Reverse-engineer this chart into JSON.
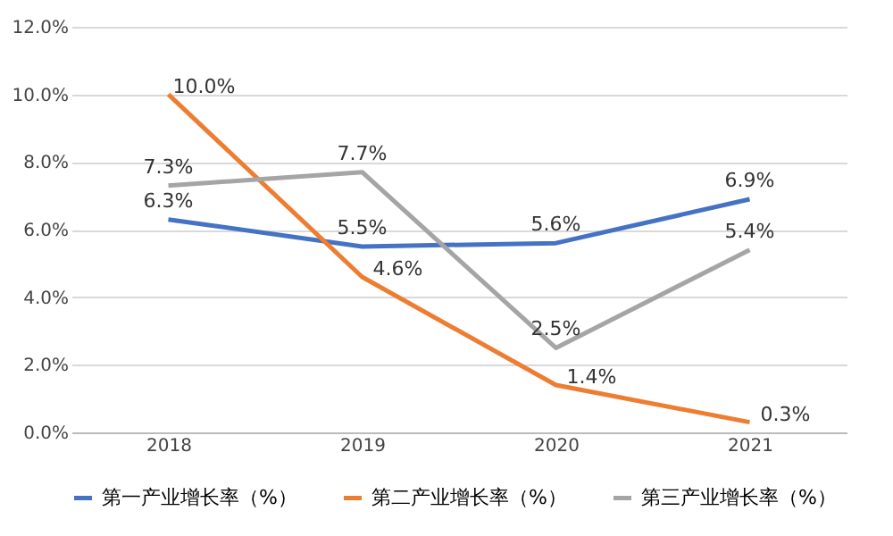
{
  "chart_data": {
    "type": "line",
    "categories": [
      "2018",
      "2019",
      "2020",
      "2021"
    ],
    "ylim": [
      0,
      12
    ],
    "yticks": [
      {
        "value": 0,
        "label": "0.0%"
      },
      {
        "value": 2,
        "label": "2.0%"
      },
      {
        "value": 4,
        "label": "4.0%"
      },
      {
        "value": 6,
        "label": "6.0%"
      },
      {
        "value": 8,
        "label": "8.0%"
      },
      {
        "value": 10,
        "label": "10.0%"
      },
      {
        "value": 12,
        "label": "12.0%"
      }
    ],
    "series": [
      {
        "name": "第一产业增长率（%）",
        "color": "#4472c4",
        "values": [
          6.3,
          5.5,
          5.6,
          6.9
        ],
        "value_labels": [
          "6.3%",
          "5.5%",
          "5.6%",
          "6.9%"
        ]
      },
      {
        "name": "第二产业增长率（%）",
        "color": "#ed7d31",
        "values": [
          10.0,
          4.6,
          1.4,
          0.3
        ],
        "value_labels": [
          "10.0%",
          "4.6%",
          "1.4%",
          "0.3%"
        ]
      },
      {
        "name": "第三产业增长率（%）",
        "color": "#a5a5a5",
        "values": [
          7.3,
          7.7,
          2.5,
          5.4
        ],
        "value_labels": [
          "7.3%",
          "7.7%",
          "2.5%",
          "5.4%"
        ]
      }
    ],
    "grid": "y",
    "legend": "bottom",
    "line_style": "solid"
  }
}
